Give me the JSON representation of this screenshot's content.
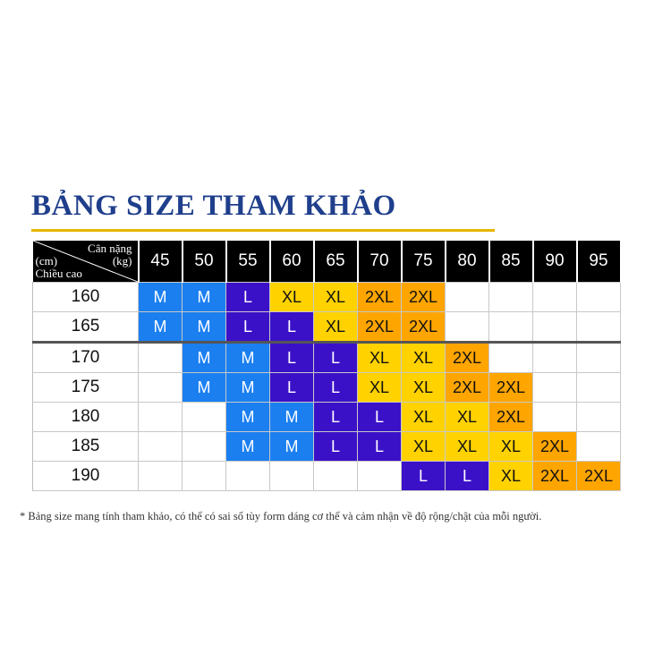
{
  "title": "BẢNG SIZE THAM KHẢO",
  "corner": {
    "weight_label": "Cân nặng",
    "weight_unit": "(kg)",
    "height_unit": "(cm)",
    "height_label": "Chiều cao"
  },
  "weights": [
    "45",
    "50",
    "55",
    "60",
    "65",
    "70",
    "75",
    "80",
    "85",
    "90",
    "95"
  ],
  "rows": [
    {
      "height": "160",
      "sizes": [
        "M",
        "M",
        "L",
        "XL",
        "XL",
        "2XL",
        "2XL",
        "",
        "",
        "",
        ""
      ]
    },
    {
      "height": "165",
      "sizes": [
        "M",
        "M",
        "L",
        "L",
        "XL",
        "2XL",
        "2XL",
        "",
        "",
        "",
        ""
      ]
    },
    {
      "height": "170",
      "sizes": [
        "",
        "M",
        "M",
        "L",
        "L",
        "XL",
        "XL",
        "2XL",
        "",
        "",
        ""
      ]
    },
    {
      "height": "175",
      "sizes": [
        "",
        "M",
        "M",
        "L",
        "L",
        "XL",
        "XL",
        "2XL",
        "2XL",
        "",
        ""
      ]
    },
    {
      "height": "180",
      "sizes": [
        "",
        "",
        "M",
        "M",
        "L",
        "L",
        "XL",
        "XL",
        "2XL",
        "",
        ""
      ]
    },
    {
      "height": "185",
      "sizes": [
        "",
        "",
        "M",
        "M",
        "L",
        "L",
        "XL",
        "XL",
        "XL",
        "2XL",
        ""
      ]
    },
    {
      "height": "190",
      "sizes": [
        "",
        "",
        "",
        "",
        "",
        "",
        "L",
        "L",
        "XL",
        "2XL",
        "2XL"
      ]
    }
  ],
  "colors": {
    "M": "#1b7ff0",
    "L": "#3b11c8",
    "XL": "#ffd200",
    "2XL": "#ffa500",
    "header": "#000000",
    "title": "#1f3f8c",
    "underline": "#e8b400"
  },
  "note": "* Bảng size mang tính tham khảo, có thể có sai số tùy form dáng cơ thể và cảm nhận về độ rộng/chật của mỗi người."
}
